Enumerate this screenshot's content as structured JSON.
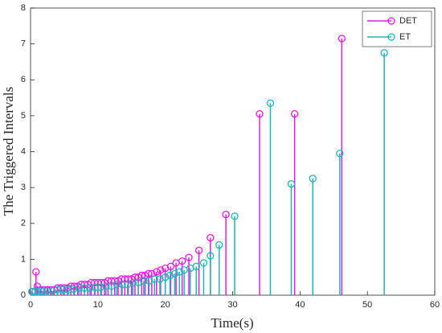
{
  "chart_data": {
    "type": "stem",
    "xlabel": "Time(s)",
    "ylabel": "The Triggered Intervals",
    "xlim": [
      0,
      60
    ],
    "xticks": [
      0,
      10,
      20,
      30,
      40,
      50,
      60
    ],
    "ylim": [
      0,
      8
    ],
    "yticks": [
      0,
      1,
      2,
      3,
      4,
      5,
      6,
      7,
      8
    ],
    "legend": "upper right",
    "grid": false,
    "series": [
      {
        "name": "DET",
        "color": "#e619e0",
        "x": [
          0.3,
          0.8,
          1.0,
          1.5,
          2.0,
          2.5,
          3.0,
          3.5,
          4.0,
          4.5,
          5.0,
          5.5,
          6.0,
          6.5,
          7.0,
          7.5,
          8.0,
          8.5,
          9.0,
          9.5,
          10.0,
          10.5,
          11.0,
          11.5,
          12.0,
          12.5,
          13.0,
          13.5,
          14.0,
          14.5,
          15.0,
          15.5,
          16.0,
          16.5,
          17.0,
          17.5,
          18.0,
          18.7,
          19.3,
          20.0,
          20.8,
          21.6,
          22.5,
          23.5,
          25.0,
          26.7,
          29.0,
          34.0,
          39.2,
          46.2
        ],
        "values": [
          0.1,
          0.65,
          0.25,
          0.15,
          0.15,
          0.15,
          0.15,
          0.15,
          0.2,
          0.2,
          0.2,
          0.2,
          0.25,
          0.25,
          0.25,
          0.3,
          0.3,
          0.3,
          0.35,
          0.35,
          0.35,
          0.35,
          0.35,
          0.4,
          0.4,
          0.4,
          0.4,
          0.45,
          0.45,
          0.45,
          0.45,
          0.5,
          0.5,
          0.55,
          0.55,
          0.6,
          0.6,
          0.65,
          0.7,
          0.75,
          0.8,
          0.9,
          0.95,
          1.05,
          1.25,
          1.6,
          2.25,
          5.05,
          5.05,
          7.15
        ]
      },
      {
        "name": "ET",
        "color": "#1fb5b5",
        "x": [
          0.2,
          0.7,
          1.2,
          1.8,
          2.5,
          3.2,
          4.0,
          4.8,
          5.6,
          6.4,
          7.2,
          8.0,
          8.8,
          9.6,
          10.4,
          11.2,
          12.0,
          12.8,
          13.6,
          14.4,
          15.2,
          16.0,
          16.8,
          17.6,
          18.4,
          19.2,
          20.0,
          20.7,
          21.4,
          22.1,
          22.8,
          23.7,
          24.6,
          25.7,
          26.7,
          28.0,
          30.3,
          35.6,
          38.7,
          41.9,
          45.9,
          52.5
        ],
        "values": [
          0.1,
          0.1,
          0.1,
          0.1,
          0.12,
          0.12,
          0.15,
          0.15,
          0.15,
          0.17,
          0.2,
          0.2,
          0.2,
          0.22,
          0.22,
          0.25,
          0.25,
          0.3,
          0.3,
          0.3,
          0.35,
          0.35,
          0.4,
          0.4,
          0.45,
          0.45,
          0.5,
          0.55,
          0.6,
          0.65,
          0.7,
          0.75,
          0.8,
          0.9,
          1.1,
          1.4,
          2.2,
          5.35,
          3.1,
          3.25,
          3.95,
          6.75
        ]
      }
    ]
  }
}
